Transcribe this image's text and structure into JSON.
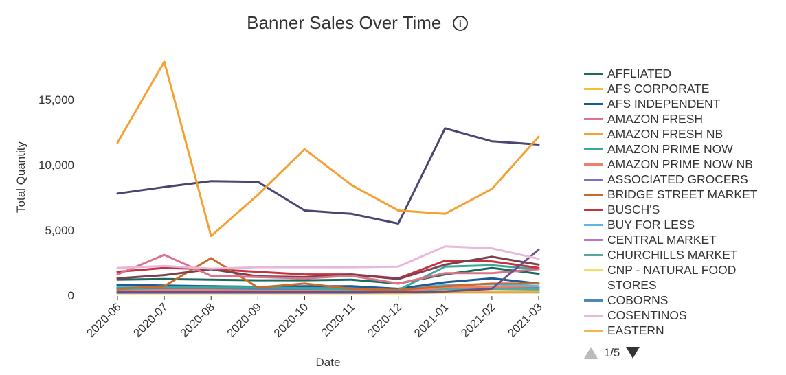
{
  "chart_data": {
    "type": "line",
    "title": "Banner Sales Over Time",
    "xlabel": "Date",
    "ylabel": "Total Quantity",
    "ylim": [
      0,
      18000
    ],
    "yticks": [
      0,
      5000,
      10000,
      15000
    ],
    "ytick_labels": [
      "0",
      "5,000",
      "10,000",
      "15,000"
    ],
    "grid": false,
    "legend_position": "right",
    "categories": [
      "2020-06",
      "2020-07",
      "2020-08",
      "2020-09",
      "2020-10",
      "2020-11",
      "2020-12",
      "2021-01",
      "2021-02",
      "2021-03"
    ],
    "series": [
      {
        "name": "AFFLIATED",
        "color": "#1b6b5e",
        "values": [
          1200,
          1250,
          1200,
          1150,
          1150,
          1200,
          900,
          1600,
          2100,
          1650
        ]
      },
      {
        "name": "AFS CORPORATE",
        "color": "#f2c232",
        "values": [
          350,
          320,
          300,
          300,
          300,
          300,
          300,
          400,
          500,
          450
        ]
      },
      {
        "name": "AFS INDEPENDENT",
        "color": "#1b5b9a",
        "values": [
          800,
          750,
          700,
          650,
          700,
          700,
          500,
          1000,
          1300,
          900
        ]
      },
      {
        "name": "AMAZON FRESH",
        "color": "#d9748a",
        "values": [
          1600,
          3100,
          1500,
          1400,
          1300,
          1500,
          900,
          1700,
          1700,
          2000
        ]
      },
      {
        "name": "AMAZON FRESH NB",
        "color": "#f5a031",
        "values": [
          11700,
          17900,
          4550,
          7700,
          11200,
          8450,
          6500,
          6250,
          8150,
          12150
        ]
      },
      {
        "name": "AMAZON PRIME NOW",
        "color": "#3aa89a",
        "values": [
          550,
          650,
          600,
          600,
          550,
          500,
          400,
          2200,
          2300,
          2000
        ]
      },
      {
        "name": "AMAZON PRIME NOW NB",
        "color": "#ee8066",
        "values": [
          300,
          400,
          400,
          350,
          350,
          300,
          300,
          600,
          650,
          700
        ]
      },
      {
        "name": "ASSOCIATED GROCERS",
        "color": "#7a6fc6",
        "values": [
          200,
          200,
          200,
          200,
          200,
          200,
          200,
          250,
          250,
          250
        ]
      },
      {
        "name": "BRIDGE STREET MARKET",
        "color": "#c96a2a",
        "values": [
          500,
          700,
          2850,
          600,
          900,
          500,
          400,
          700,
          900,
          900
        ]
      },
      {
        "name": "BUSCH'S",
        "color": "#c8323e",
        "values": [
          1800,
          2100,
          2000,
          1800,
          1600,
          1600,
          1300,
          2650,
          2600,
          2100
        ]
      },
      {
        "name": "BUY FOR LESS",
        "color": "#5bb7e3",
        "values": [
          700,
          650,
          700,
          650,
          650,
          700,
          500,
          800,
          850,
          700
        ]
      },
      {
        "name": "CENTRAL MARKET",
        "color": "#b279cf",
        "values": [
          400,
          400,
          350,
          350,
          350,
          350,
          300,
          500,
          500,
          500
        ]
      },
      {
        "name": "CHURCHILLS MARKET",
        "color": "#5aa79b",
        "values": [
          450,
          450,
          400,
          400,
          400,
          400,
          350,
          500,
          500,
          450
        ]
      },
      {
        "name": "CNP - NATURAL FOOD STORES",
        "color": "#f7dd62",
        "values": [
          150,
          150,
          150,
          150,
          150,
          150,
          150,
          200,
          200,
          200
        ]
      },
      {
        "name": "COBORNS",
        "color": "#4a88b8",
        "values": [
          600,
          550,
          550,
          500,
          500,
          550,
          450,
          650,
          650,
          600
        ]
      },
      {
        "name": "COSENTINOS",
        "color": "#e6b8dc",
        "values": [
          2100,
          2250,
          2050,
          2150,
          2150,
          2150,
          2200,
          3750,
          3600,
          2800
        ]
      },
      {
        "name": "EASTERN",
        "color": "#f0b54a",
        "values": [
          250,
          250,
          250,
          250,
          250,
          250,
          200,
          300,
          300,
          300
        ]
      },
      {
        "name": "",
        "color": "#4c4472",
        "values": [
          7800,
          8300,
          8750,
          8700,
          6500,
          6250,
          5500,
          12800,
          11800,
          11550
        ]
      },
      {
        "name": "",
        "color": "#7c4050",
        "values": [
          1300,
          1550,
          2000,
          1450,
          1400,
          1600,
          1250,
          2350,
          2950,
          2350
        ]
      },
      {
        "name": "",
        "color": "#6e4d8c",
        "values": [
          250,
          250,
          250,
          250,
          250,
          250,
          250,
          300,
          500,
          3500
        ]
      }
    ]
  },
  "legend": {
    "items": [
      {
        "label": "AFFLIATED",
        "color": "#1b6b5e"
      },
      {
        "label": "AFS CORPORATE",
        "color": "#f2c232"
      },
      {
        "label": "AFS INDEPENDENT",
        "color": "#1b5b9a"
      },
      {
        "label": "AMAZON FRESH",
        "color": "#d9748a"
      },
      {
        "label": "AMAZON FRESH NB",
        "color": "#f5a031"
      },
      {
        "label": "AMAZON PRIME NOW",
        "color": "#3aa89a"
      },
      {
        "label": "AMAZON PRIME NOW NB",
        "color": "#ee8066"
      },
      {
        "label": "ASSOCIATED GROCERS",
        "color": "#7a6fc6"
      },
      {
        "label": "BRIDGE STREET MARKET",
        "color": "#c96a2a"
      },
      {
        "label": "BUSCH'S",
        "color": "#c8323e"
      },
      {
        "label": "BUY FOR LESS",
        "color": "#5bb7e3"
      },
      {
        "label": "CENTRAL MARKET",
        "color": "#b279cf"
      },
      {
        "label": "CHURCHILLS MARKET",
        "color": "#5aa79b"
      },
      {
        "label": "CNP - NATURAL FOOD STORES",
        "color": "#f7dd62"
      },
      {
        "label": "COBORNS",
        "color": "#4a88b8"
      },
      {
        "label": "COSENTINOS",
        "color": "#e6b8dc"
      },
      {
        "label": "EASTERN",
        "color": "#f0b54a"
      }
    ],
    "pager_text": "1/5"
  },
  "icons": {
    "info": "info-icon",
    "prev_page": "triangle-up-icon",
    "next_page": "triangle-down-icon"
  },
  "info_glyph": "i"
}
